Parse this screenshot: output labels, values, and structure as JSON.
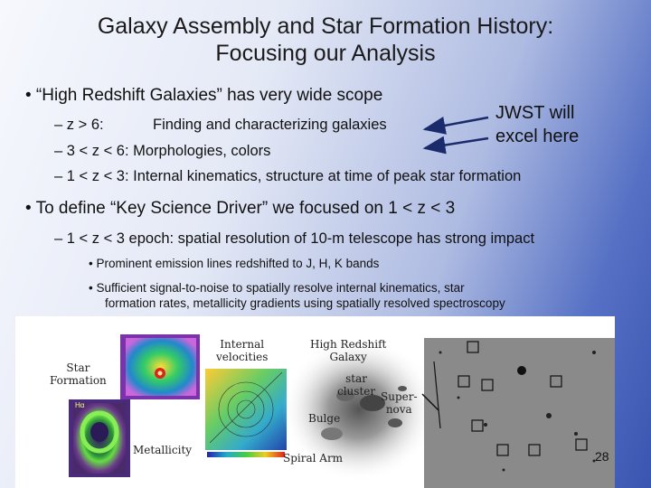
{
  "slide": {
    "title_line1": "Galaxy Assembly and Star Formation History:",
    "title_line2": "Focusing our Analysis",
    "bullet1": "•  “High Redshift Galaxies” has very wide scope",
    "sub1_marker": "–  z > 6:",
    "sub1_text": "Finding and characterizing galaxies",
    "sub2": "–  3 < z < 6:  Morphologies, colors",
    "sub3": "–  1 < z < 3:  Internal kinematics, structure at time of peak star formation",
    "jwst_line1": "JWST will",
    "jwst_line2": "excel here",
    "bullet2": "•  To define “Key Science Driver” we focused on 1 < z < 3",
    "sub4": "–  1 < z < 3 epoch: spatial resolution of 10-m telescope has strong impact",
    "sub5": "•  Prominent emission lines redshifted to J, H, K bands",
    "sub6_line1": "•  Sufficient signal-to-noise to spatially resolve internal kinematics, star",
    "sub6_line2": "formation rates, metallicity gradients using spatially resolved spectroscopy",
    "page_number": "28"
  },
  "figure": {
    "label_star_formation_1": "Star",
    "label_star_formation_2": "Formation",
    "label_halpha": "Hα",
    "label_internal_1": "Internal",
    "label_internal_2": "velocities",
    "label_metallicity": "Metallicity",
    "label_high_z_1": "High Redshift",
    "label_high_z_2": "Galaxy",
    "label_star_cluster_1": "star",
    "label_star_cluster_2": "cluster",
    "label_supernova_1": "Super-",
    "label_supernova_2": "nova",
    "label_bulge": "Bulge",
    "label_spiral_arm": "Spiral Arm"
  }
}
